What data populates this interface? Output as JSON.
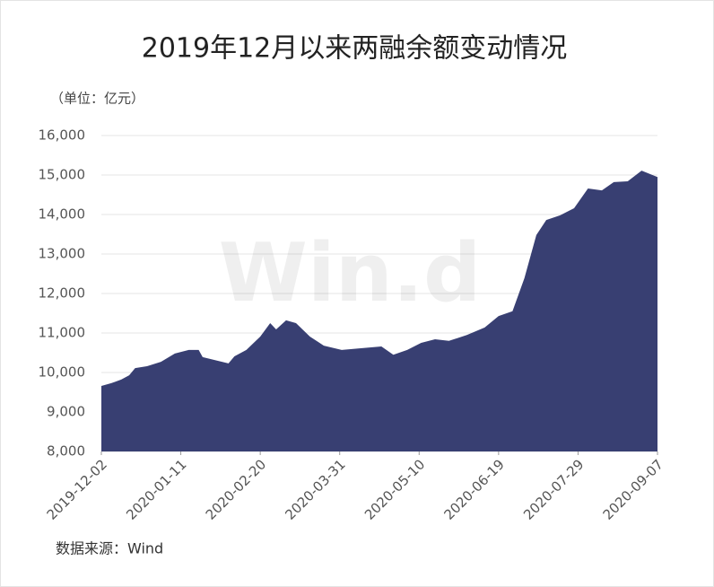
{
  "chart_data": {
    "type": "area",
    "title": "2019年12月以来两融余额变动情况",
    "unit_label": "（单位：亿元）",
    "source": "数据来源：Wind",
    "watermark": "Win.d",
    "color": "#383f72",
    "grid": true,
    "x": [
      "2019-12-02",
      "2019-12-07",
      "2019-12-12",
      "2019-12-16",
      "2019-12-19",
      "2019-12-25",
      "2020-01-01",
      "2020-01-08",
      "2020-01-15",
      "2020-01-20",
      "2020-01-22",
      "2020-02-04",
      "2020-02-07",
      "2020-02-13",
      "2020-02-20",
      "2020-02-25",
      "2020-02-28",
      "2020-03-04",
      "2020-03-09",
      "2020-03-16",
      "2020-03-23",
      "2020-04-01",
      "2020-04-10",
      "2020-04-21",
      "2020-04-27",
      "2020-05-04",
      "2020-05-11",
      "2020-05-18",
      "2020-05-25",
      "2020-06-03",
      "2020-06-12",
      "2020-06-19",
      "2020-06-26",
      "2020-07-02",
      "2020-07-08",
      "2020-07-13",
      "2020-07-20",
      "2020-07-27",
      "2020-08-03",
      "2020-08-10",
      "2020-08-16",
      "2020-08-23",
      "2020-08-30",
      "2020-09-07"
    ],
    "values": [
      9660,
      9730,
      9820,
      9930,
      10110,
      10160,
      10270,
      10480,
      10570,
      10570,
      10390,
      10230,
      10410,
      10570,
      10910,
      11250,
      11090,
      11320,
      11250,
      10910,
      10680,
      10570,
      10610,
      10660,
      10450,
      10570,
      10750,
      10840,
      10800,
      10950,
      11140,
      11430,
      11550,
      12390,
      13480,
      13860,
      13980,
      14160,
      14660,
      14610,
      14820,
      14840,
      15110,
      14950
    ],
    "xlim": [
      "2019-12-02",
      "2020-09-07"
    ],
    "xticks": [
      "2019-12-02",
      "2020-01-11",
      "2020-02-20",
      "2020-03-31",
      "2020-05-10",
      "2020-06-19",
      "2020-07-29",
      "2020-09-07"
    ],
    "ylim": [
      8000,
      16000
    ],
    "yticks": [
      {
        "value": 8000,
        "label": "8,000"
      },
      {
        "value": 9000,
        "label": "9,000"
      },
      {
        "value": 10000,
        "label": "10,000"
      },
      {
        "value": 11000,
        "label": "11,000"
      },
      {
        "value": 12000,
        "label": "12,000"
      },
      {
        "value": 13000,
        "label": "13,000"
      },
      {
        "value": 14000,
        "label": "14,000"
      },
      {
        "value": 15000,
        "label": "15,000"
      },
      {
        "value": 16000,
        "label": "16,000"
      }
    ]
  }
}
